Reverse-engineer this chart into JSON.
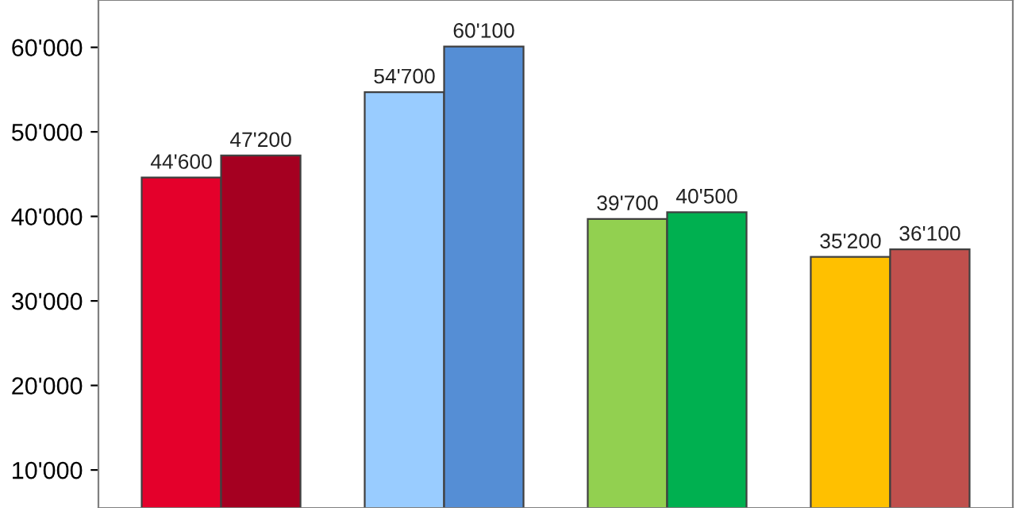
{
  "chart_data": {
    "type": "bar",
    "categories": [
      null,
      null,
      null,
      null
    ],
    "series": [
      {
        "colors": [
          "#e4002b",
          "#99ccff",
          "#92d050",
          "#ffc000"
        ],
        "values": [
          44600,
          54700,
          39700,
          35200
        ],
        "value_labels": [
          "44'600",
          "54'700",
          "39'700",
          "35'200"
        ]
      },
      {
        "colors": [
          "#a50021",
          "#558ed5",
          "#00b050",
          "#c0504d"
        ],
        "values": [
          47200,
          60100,
          40500,
          36100
        ],
        "value_labels": [
          "47'200",
          "60'100",
          "40'500",
          "36'100"
        ]
      }
    ],
    "ylim": [
      5500,
      65600
    ],
    "yticks": [
      {
        "value": 10000,
        "label": "10'000"
      },
      {
        "value": 20000,
        "label": "20'000"
      },
      {
        "value": 30000,
        "label": "30'000"
      },
      {
        "value": 40000,
        "label": "40'000"
      },
      {
        "value": 50000,
        "label": "50'000"
      },
      {
        "value": 60000,
        "label": "60'000"
      }
    ],
    "grid": false,
    "legend": false
  }
}
